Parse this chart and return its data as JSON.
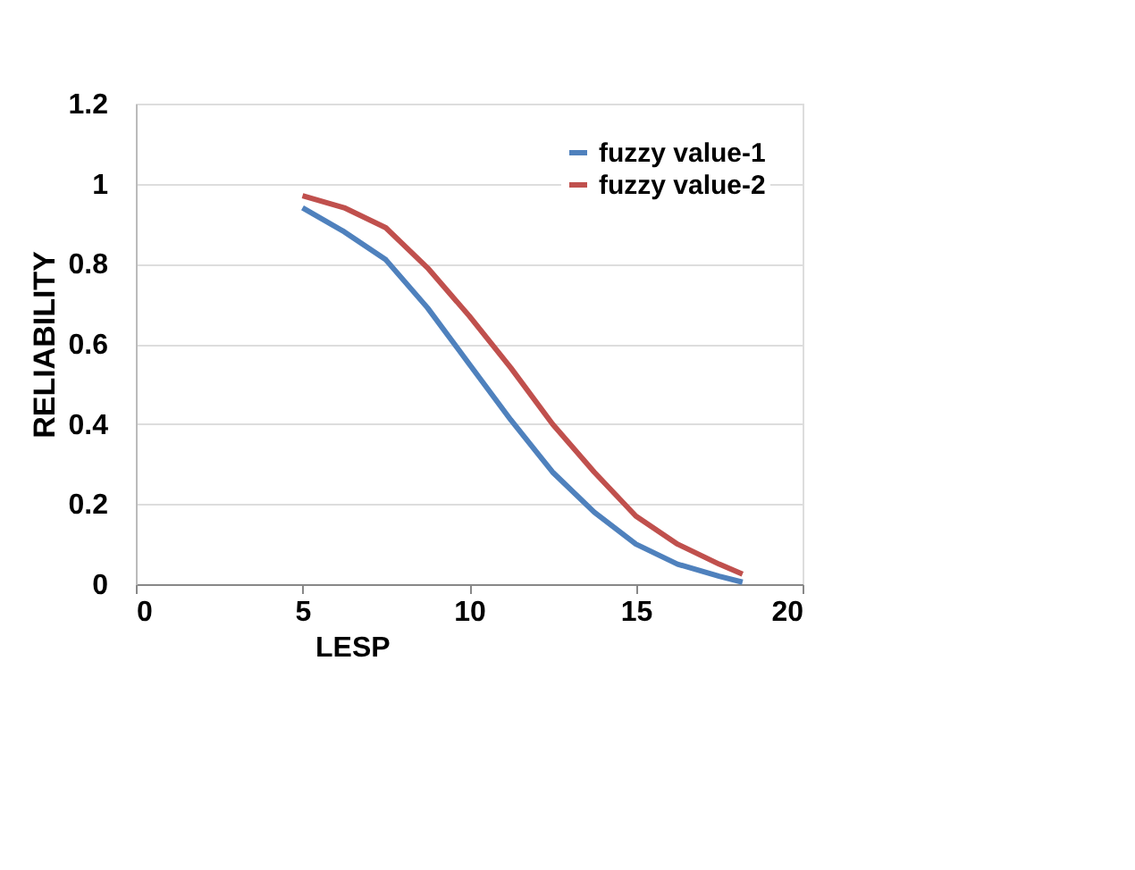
{
  "chart_data": {
    "type": "line",
    "xlabel": "LESP",
    "ylabel": "RELIABILITY",
    "x": [
      5,
      6.25,
      7.5,
      8.75,
      10,
      11.25,
      12.5,
      13.75,
      15,
      16.25,
      17.5,
      18.2
    ],
    "series": [
      {
        "name": "fuzzy value-1",
        "color": "#4f81bd",
        "values": [
          0.94,
          0.88,
          0.81,
          0.69,
          0.55,
          0.41,
          0.28,
          0.18,
          0.1,
          0.05,
          0.02,
          0.005
        ]
      },
      {
        "name": "fuzzy value-2",
        "color": "#c0504d",
        "values": [
          0.97,
          0.94,
          0.89,
          0.79,
          0.67,
          0.54,
          0.4,
          0.28,
          0.17,
          0.1,
          0.05,
          0.025
        ]
      }
    ],
    "xlim": [
      0,
      20
    ],
    "xticks": [
      0,
      5,
      10,
      15,
      20
    ],
    "ylim": [
      0,
      1.2
    ],
    "yticks": [
      0,
      0.2,
      0.4,
      0.6,
      0.8,
      1,
      1.2
    ],
    "grid": "y",
    "legend": "top right",
    "marker": "none",
    "line_style": "solid"
  }
}
